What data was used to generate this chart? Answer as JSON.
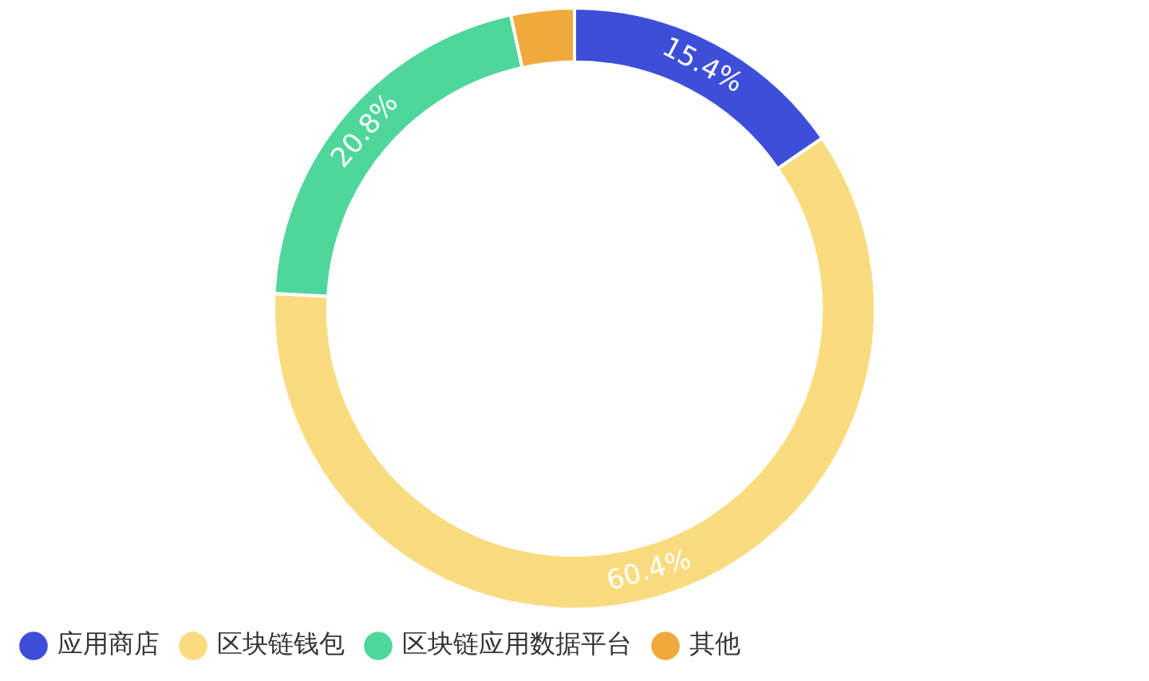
{
  "chart_data": {
    "type": "donut",
    "categories": [
      "应用商店",
      "区块链钱包",
      "区块链应用数据平台",
      "其他"
    ],
    "values": [
      15.4,
      60.4,
      20.8,
      3.4
    ],
    "colors": [
      "#3d4fd8",
      "#f9dc7f",
      "#4fd69b",
      "#f0aa3c"
    ],
    "value_labels": [
      "15.4%",
      "60.4%",
      "20.8%",
      null
    ],
    "legend": "bottom"
  }
}
